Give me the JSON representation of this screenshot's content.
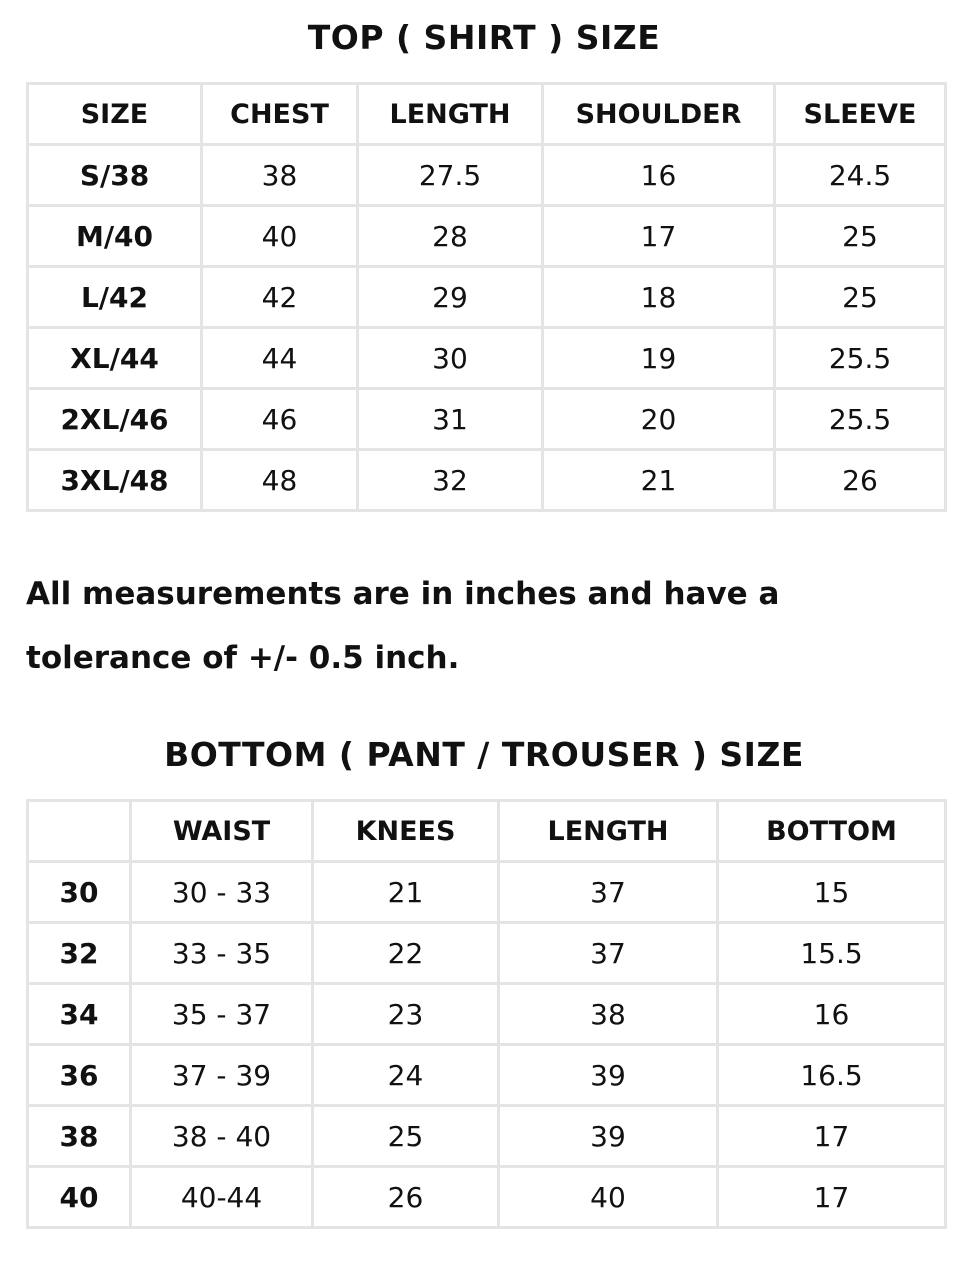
{
  "top": {
    "title": "TOP ( SHIRT ) SIZE",
    "headers": [
      "SIZE",
      "CHEST",
      "LENGTH",
      "SHOULDER",
      "SLEEVE"
    ],
    "rows": [
      [
        "S/38",
        "38",
        "27.5",
        "16",
        "24.5"
      ],
      [
        "M/40",
        "40",
        "28",
        "17",
        "25"
      ],
      [
        "L/42",
        "42",
        "29",
        "18",
        "25"
      ],
      [
        "XL/44",
        "44",
        "30",
        "19",
        "25.5"
      ],
      [
        "2XL/46",
        "46",
        "31",
        "20",
        "25.5"
      ],
      [
        "3XL/48",
        "48",
        "32",
        "21",
        "26"
      ]
    ]
  },
  "note": "All measurements are in inches and have a tolerance of +/- 0.5 inch.",
  "bottom": {
    "title": "BOTTOM ( PANT / TROUSER ) SIZE",
    "headers": [
      "",
      "WAIST",
      "KNEES",
      "LENGTH",
      "BOTTOM"
    ],
    "rows": [
      [
        "30",
        "30 - 33",
        "21",
        "37",
        "15"
      ],
      [
        "32",
        "33 - 35",
        "22",
        "37",
        "15.5"
      ],
      [
        "34",
        "35 - 37",
        "23",
        "38",
        "16"
      ],
      [
        "36",
        "37 - 39",
        "24",
        "39",
        "16.5"
      ],
      [
        "38",
        "38 - 40",
        "25",
        "39",
        "17"
      ],
      [
        "40",
        "40-44",
        "26",
        "40",
        "17"
      ]
    ]
  }
}
